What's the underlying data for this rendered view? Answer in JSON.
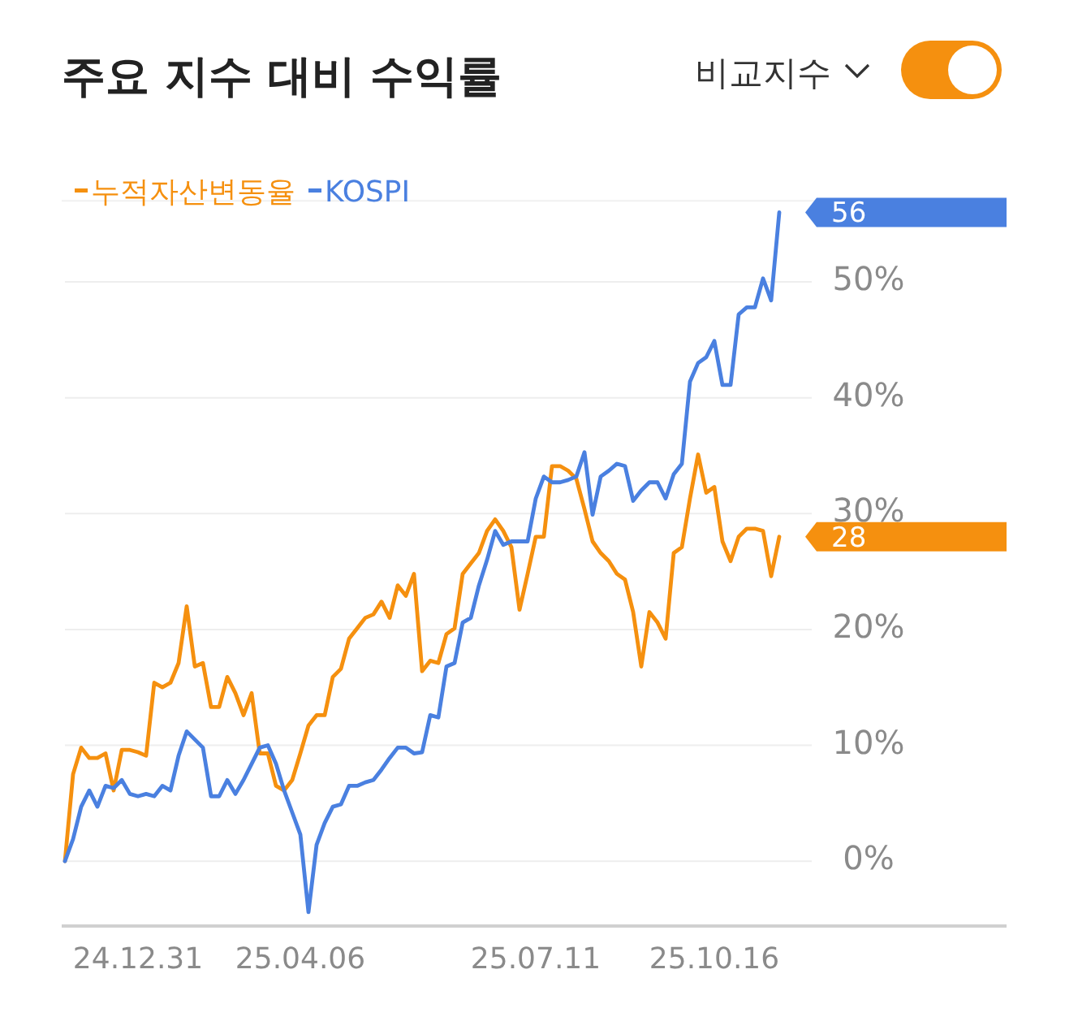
{
  "chart_data": {
    "type": "line",
    "title": "주요 지수 대비 수익률",
    "annotations": [
      "비교지수"
    ],
    "categories": [
      null,
      null,
      null,
      null,
      null,
      null,
      null,
      null,
      null,
      "24.12.31",
      null,
      null,
      null,
      null,
      null,
      null,
      null,
      null,
      null,
      null,
      null,
      null,
      null,
      null,
      null,
      null,
      null,
      null,
      null,
      "25.04.06",
      null,
      null,
      null,
      null,
      null,
      null,
      null,
      null,
      null,
      null,
      null,
      null,
      null,
      null,
      null,
      null,
      null,
      null,
      null,
      null,
      null,
      null,
      null,
      null,
      null,
      null,
      null,
      null,
      "25.07.11",
      null,
      null,
      null,
      null,
      null,
      null,
      null,
      null,
      null,
      null,
      null,
      null,
      null,
      null,
      null,
      null,
      null,
      null,
      null,
      null,
      null,
      "25.10.16",
      null,
      null,
      null,
      null,
      null,
      null,
      null,
      null
    ],
    "series": [
      {
        "name": "누적자산변동율",
        "color": "#f5900f",
        "values": [
          0,
          7.5,
          9.8,
          8.9,
          8.9,
          9.3,
          6.1,
          9.6,
          9.6,
          9.4,
          9.1,
          15.4,
          15.0,
          15.4,
          17.1,
          22.0,
          16.8,
          17.1,
          13.3,
          13.3,
          15.9,
          14.5,
          12.6,
          14.5,
          9.3,
          9.3,
          6.5,
          6.1,
          7.0,
          9.3,
          11.7,
          12.6,
          12.6,
          15.9,
          16.6,
          19.2,
          20.1,
          21.0,
          21.3,
          22.4,
          21.0,
          23.8,
          22.9,
          24.8,
          16.4,
          17.3,
          17.1,
          19.6,
          20.1,
          24.8,
          25.7,
          26.6,
          28.5,
          29.5,
          28.5,
          27.1,
          21.7,
          24.8,
          28.0,
          28.0,
          34.1,
          34.1,
          33.7,
          33.0,
          30.4,
          27.6,
          26.6,
          25.9,
          24.8,
          24.3,
          21.5,
          16.8,
          21.5,
          20.6,
          19.2,
          26.6,
          27.1,
          31.3,
          35.1,
          31.8,
          32.3,
          27.6,
          25.9,
          28.0,
          28.7,
          28.7,
          28.5,
          24.6,
          28
        ],
        "value_labels": [
          null,
          null,
          null,
          null,
          null,
          null,
          null,
          null,
          null,
          null,
          null,
          null,
          null,
          null,
          null,
          null,
          null,
          null,
          null,
          null,
          null,
          null,
          null,
          null,
          null,
          null,
          null,
          null,
          null,
          null,
          null,
          null,
          null,
          null,
          null,
          null,
          null,
          null,
          null,
          null,
          null,
          null,
          null,
          null,
          null,
          null,
          null,
          null,
          null,
          null,
          null,
          null,
          null,
          null,
          null,
          null,
          null,
          null,
          null,
          null,
          null,
          null,
          null,
          null,
          null,
          null,
          null,
          null,
          null,
          null,
          null,
          null,
          null,
          null,
          null,
          null,
          null,
          null,
          null,
          null,
          null,
          null,
          null,
          null,
          null,
          null,
          null,
          null,
          "28"
        ]
      },
      {
        "name": "KOSPI",
        "color": "#4a80e0",
        "values": [
          0,
          1.9,
          4.7,
          6.1,
          4.7,
          6.5,
          6.3,
          7.0,
          5.8,
          5.6,
          5.8,
          5.6,
          6.5,
          6.1,
          9.1,
          11.2,
          10.5,
          9.8,
          5.6,
          5.6,
          7.0,
          5.8,
          7.0,
          8.4,
          9.8,
          10.0,
          8.4,
          6.1,
          4.2,
          2.3,
          -4.4,
          1.4,
          3.3,
          4.7,
          4.9,
          6.5,
          6.5,
          6.8,
          7.0,
          7.9,
          8.9,
          9.8,
          9.8,
          9.3,
          9.4,
          12.6,
          12.4,
          16.8,
          17.1,
          20.6,
          21.0,
          23.8,
          26.0,
          28.5,
          27.3,
          27.6,
          27.6,
          27.6,
          31.3,
          33.2,
          32.7,
          32.7,
          32.9,
          33.2,
          35.3,
          29.9,
          33.2,
          33.7,
          34.3,
          34.1,
          31.1,
          32.0,
          32.7,
          32.7,
          31.3,
          33.4,
          34.3,
          41.4,
          43.0,
          43.5,
          44.9,
          41.1,
          41.1,
          47.2,
          47.8,
          47.8,
          50.3,
          48.4,
          56
        ],
        "value_labels": [
          null,
          null,
          null,
          null,
          null,
          null,
          null,
          null,
          null,
          null,
          null,
          null,
          null,
          null,
          null,
          null,
          null,
          null,
          null,
          null,
          null,
          null,
          null,
          null,
          null,
          null,
          null,
          null,
          null,
          null,
          null,
          null,
          null,
          null,
          null,
          null,
          null,
          null,
          null,
          null,
          null,
          null,
          null,
          null,
          null,
          null,
          null,
          null,
          null,
          null,
          null,
          null,
          null,
          null,
          null,
          null,
          null,
          null,
          null,
          null,
          null,
          null,
          null,
          null,
          null,
          null,
          null,
          null,
          null,
          null,
          null,
          null,
          null,
          null,
          null,
          null,
          null,
          null,
          null,
          null,
          null,
          null,
          null,
          null,
          null,
          null,
          null,
          null,
          "56"
        ]
      }
    ],
    "yticks": [
      {
        "value": 0,
        "label": "0%"
      },
      {
        "value": 10,
        "label": "10%"
      },
      {
        "value": 20,
        "label": "20%"
      },
      {
        "value": 30,
        "label": "30%"
      },
      {
        "value": 40,
        "label": "40%"
      },
      {
        "value": 50,
        "label": "50%"
      }
    ],
    "ylim": [
      -5.6,
      57
    ],
    "grid": "y",
    "legend": "top left"
  }
}
